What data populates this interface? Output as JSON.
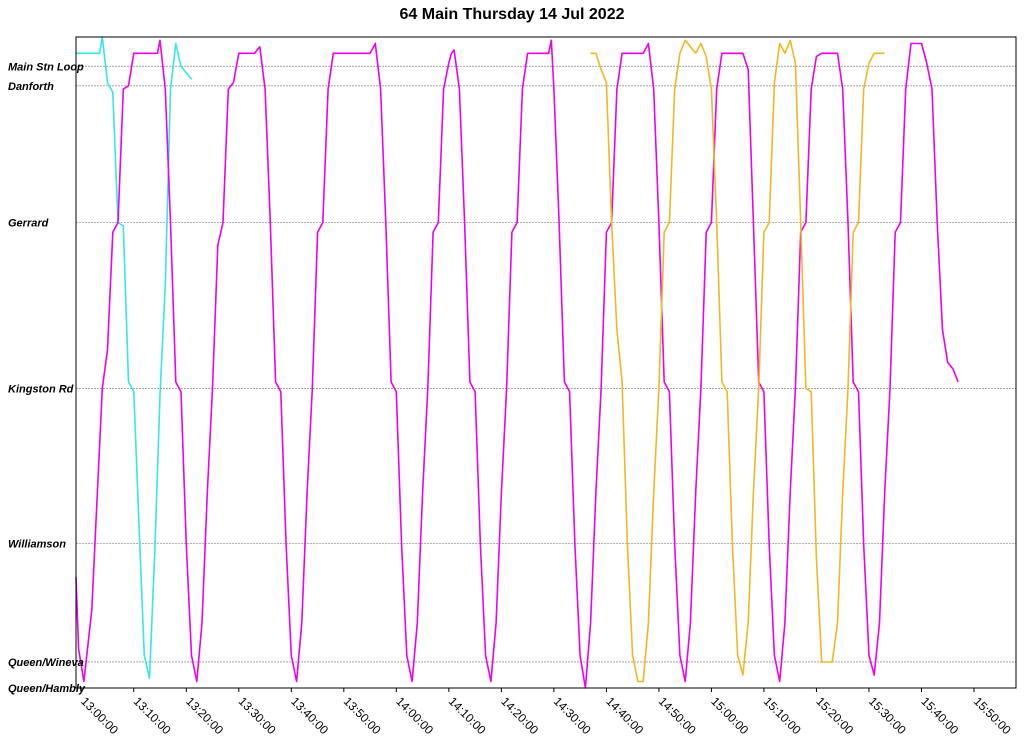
{
  "chart_data": {
    "type": "line",
    "title": "64 Main Thursday 14 Jul 2022",
    "x_range": [
      "12:59:00",
      "15:58:00"
    ],
    "grid": {
      "horizontal": true,
      "vertical": false
    },
    "stops": [
      {
        "name": "Main Stn Loop",
        "pos": 0.955
      },
      {
        "name": "Danforth",
        "pos": 0.925
      },
      {
        "name": "Gerrard",
        "pos": 0.715
      },
      {
        "name": "Kingston Rd",
        "pos": 0.46
      },
      {
        "name": "Williamson",
        "pos": 0.222
      },
      {
        "name": "Queen/Wineva",
        "pos": 0.04
      },
      {
        "name": "Queen/Hambly",
        "pos": 0.0
      }
    ],
    "x_ticks": [
      "13:00:00",
      "13:10:00",
      "13:20:00",
      "13:30:00",
      "13:40:00",
      "13:50:00",
      "14:00:00",
      "14:10:00",
      "14:20:00",
      "14:30:00",
      "14:40:00",
      "14:50:00",
      "15:00:00",
      "15:10:00",
      "15:20:00",
      "15:30:00",
      "15:40:00",
      "15:50:00"
    ],
    "series": [
      {
        "color": "#33e8e8",
        "points": [
          [
            "12:59:00",
            0.975
          ],
          [
            "13:03:30",
            0.975
          ],
          [
            "13:04:00",
            1.0
          ],
          [
            "13:05:00",
            0.93
          ],
          [
            "13:06:00",
            0.915
          ],
          [
            "13:07:00",
            0.715
          ],
          [
            "13:08:00",
            0.71
          ],
          [
            "13:09:00",
            0.47
          ],
          [
            "13:10:00",
            0.455
          ],
          [
            "13:11:00",
            0.25
          ],
          [
            "13:12:00",
            0.05
          ],
          [
            "13:13:00",
            0.015
          ],
          [
            "13:14:00",
            0.21
          ],
          [
            "13:15:00",
            0.45
          ],
          [
            "13:16:00",
            0.62
          ],
          [
            "13:17:00",
            0.92
          ],
          [
            "13:18:00",
            0.99
          ],
          [
            "13:19:00",
            0.955
          ],
          [
            "13:20:00",
            0.945
          ],
          [
            "13:21:00",
            0.935
          ]
        ]
      },
      {
        "color": "#ee00ee",
        "points": [
          [
            "12:59:00",
            0.17
          ],
          [
            "12:59:30",
            0.06
          ],
          [
            "13:00:30",
            0.01
          ],
          [
            "13:02:00",
            0.12
          ],
          [
            "13:04:00",
            0.46
          ],
          [
            "13:05:00",
            0.52
          ],
          [
            "13:06:00",
            0.7
          ],
          [
            "13:07:00",
            0.715
          ],
          [
            "13:08:00",
            0.92
          ],
          [
            "13:09:00",
            0.925
          ],
          [
            "13:10:00",
            0.975
          ],
          [
            "13:12:00",
            0.975
          ],
          [
            "13:14:30",
            0.975
          ],
          [
            "13:15:00",
            0.995
          ],
          [
            "13:16:00",
            0.92
          ],
          [
            "13:17:00",
            0.715
          ],
          [
            "13:18:00",
            0.47
          ],
          [
            "13:19:00",
            0.455
          ],
          [
            "13:20:00",
            0.22
          ],
          [
            "13:21:00",
            0.05
          ],
          [
            "13:22:00",
            0.01
          ],
          [
            "13:23:00",
            0.1
          ],
          [
            "13:24:00",
            0.3
          ],
          [
            "13:25:00",
            0.46
          ],
          [
            "13:26:00",
            0.68
          ],
          [
            "13:27:00",
            0.715
          ],
          [
            "13:28:00",
            0.92
          ],
          [
            "13:29:00",
            0.93
          ],
          [
            "13:30:00",
            0.975
          ],
          [
            "13:33:00",
            0.975
          ],
          [
            "13:34:00",
            0.985
          ],
          [
            "13:35:00",
            0.92
          ],
          [
            "13:36:00",
            0.715
          ],
          [
            "13:37:00",
            0.47
          ],
          [
            "13:38:00",
            0.455
          ],
          [
            "13:39:00",
            0.22
          ],
          [
            "13:40:00",
            0.05
          ],
          [
            "13:41:00",
            0.01
          ],
          [
            "13:42:00",
            0.1
          ],
          [
            "13:43:00",
            0.3
          ],
          [
            "13:44:00",
            0.46
          ],
          [
            "13:45:00",
            0.7
          ],
          [
            "13:46:00",
            0.715
          ],
          [
            "13:47:00",
            0.92
          ],
          [
            "13:48:00",
            0.975
          ],
          [
            "13:55:00",
            0.975
          ],
          [
            "13:56:00",
            0.99
          ],
          [
            "13:57:00",
            0.92
          ],
          [
            "13:58:00",
            0.715
          ],
          [
            "13:59:00",
            0.47
          ],
          [
            "14:00:00",
            0.455
          ],
          [
            "14:01:00",
            0.22
          ],
          [
            "14:02:00",
            0.05
          ],
          [
            "14:03:00",
            0.01
          ],
          [
            "14:04:00",
            0.1
          ],
          [
            "14:05:00",
            0.3
          ],
          [
            "14:06:00",
            0.46
          ],
          [
            "14:07:00",
            0.7
          ],
          [
            "14:08:00",
            0.715
          ],
          [
            "14:09:00",
            0.92
          ],
          [
            "14:10:00",
            0.96
          ],
          [
            "14:10:30",
            0.975
          ],
          [
            "14:11:00",
            0.98
          ],
          [
            "14:12:00",
            0.92
          ],
          [
            "14:13:00",
            0.715
          ],
          [
            "14:14:00",
            0.47
          ],
          [
            "14:15:00",
            0.455
          ],
          [
            "14:16:00",
            0.22
          ],
          [
            "14:17:00",
            0.05
          ],
          [
            "14:18:00",
            0.01
          ],
          [
            "14:19:00",
            0.1
          ],
          [
            "14:20:00",
            0.3
          ],
          [
            "14:21:00",
            0.46
          ],
          [
            "14:22:00",
            0.7
          ],
          [
            "14:23:00",
            0.715
          ],
          [
            "14:24:00",
            0.92
          ],
          [
            "14:25:00",
            0.975
          ],
          [
            "14:29:00",
            0.975
          ],
          [
            "14:29:30",
            0.995
          ],
          [
            "14:30:00",
            0.92
          ],
          [
            "14:31:00",
            0.715
          ],
          [
            "14:32:00",
            0.47
          ],
          [
            "14:33:00",
            0.455
          ],
          [
            "14:34:00",
            0.22
          ],
          [
            "14:35:00",
            0.05
          ],
          [
            "14:36:00",
            0.0
          ],
          [
            "14:37:00",
            0.1
          ],
          [
            "14:38:00",
            0.3
          ],
          [
            "14:39:00",
            0.46
          ],
          [
            "14:40:00",
            0.7
          ],
          [
            "14:41:00",
            0.715
          ],
          [
            "14:42:00",
            0.92
          ],
          [
            "14:43:00",
            0.975
          ],
          [
            "14:47:00",
            0.975
          ],
          [
            "14:48:00",
            0.99
          ],
          [
            "14:49:00",
            0.92
          ],
          [
            "14:50:00",
            0.715
          ],
          [
            "14:51:00",
            0.47
          ],
          [
            "14:52:00",
            0.455
          ],
          [
            "14:53:00",
            0.22
          ],
          [
            "14:54:00",
            0.05
          ],
          [
            "14:55:00",
            0.01
          ],
          [
            "14:56:00",
            0.1
          ],
          [
            "14:57:00",
            0.3
          ],
          [
            "14:58:00",
            0.46
          ],
          [
            "14:59:00",
            0.7
          ],
          [
            "15:00:00",
            0.715
          ],
          [
            "15:01:00",
            0.92
          ],
          [
            "15:02:00",
            0.975
          ],
          [
            "15:06:00",
            0.975
          ],
          [
            "15:07:00",
            0.95
          ],
          [
            "15:08:00",
            0.715
          ],
          [
            "15:09:00",
            0.47
          ],
          [
            "15:10:00",
            0.455
          ],
          [
            "15:11:00",
            0.22
          ],
          [
            "15:12:00",
            0.05
          ],
          [
            "15:13:00",
            0.01
          ],
          [
            "15:14:00",
            0.1
          ],
          [
            "15:15:00",
            0.3
          ],
          [
            "15:16:00",
            0.46
          ],
          [
            "15:17:00",
            0.7
          ],
          [
            "15:18:00",
            0.715
          ],
          [
            "15:19:00",
            0.92
          ],
          [
            "15:20:00",
            0.97
          ],
          [
            "15:21:00",
            0.975
          ],
          [
            "15:24:00",
            0.975
          ],
          [
            "15:25:00",
            0.92
          ],
          [
            "15:26:00",
            0.715
          ],
          [
            "15:27:00",
            0.47
          ],
          [
            "15:28:00",
            0.455
          ],
          [
            "15:29:00",
            0.22
          ],
          [
            "15:30:00",
            0.05
          ],
          [
            "15:31:00",
            0.02
          ],
          [
            "15:32:00",
            0.1
          ],
          [
            "15:33:00",
            0.3
          ],
          [
            "15:34:00",
            0.46
          ],
          [
            "15:35:00",
            0.7
          ],
          [
            "15:36:00",
            0.715
          ],
          [
            "15:37:00",
            0.92
          ],
          [
            "15:38:00",
            0.99
          ],
          [
            "15:40:00",
            0.99
          ],
          [
            "15:41:00",
            0.96
          ],
          [
            "15:42:00",
            0.92
          ],
          [
            "15:43:00",
            0.715
          ],
          [
            "15:44:00",
            0.55
          ],
          [
            "15:45:00",
            0.5
          ],
          [
            "15:46:00",
            0.49
          ],
          [
            "15:47:00",
            0.47
          ]
        ]
      },
      {
        "color": "#f2b823",
        "points": [
          [
            "14:37:00",
            0.975
          ],
          [
            "14:38:00",
            0.975
          ],
          [
            "14:39:00",
            0.95
          ],
          [
            "14:40:00",
            0.93
          ],
          [
            "14:41:00",
            0.715
          ],
          [
            "14:42:00",
            0.55
          ],
          [
            "14:43:00",
            0.47
          ],
          [
            "14:44:00",
            0.22
          ],
          [
            "14:45:00",
            0.05
          ],
          [
            "14:46:00",
            0.01
          ],
          [
            "14:47:00",
            0.01
          ],
          [
            "14:48:00",
            0.1
          ],
          [
            "14:49:00",
            0.3
          ],
          [
            "14:50:00",
            0.46
          ],
          [
            "14:51:00",
            0.7
          ],
          [
            "14:52:00",
            0.715
          ],
          [
            "14:53:00",
            0.92
          ],
          [
            "14:54:00",
            0.975
          ],
          [
            "14:55:00",
            0.995
          ],
          [
            "14:56:00",
            0.985
          ],
          [
            "14:57:00",
            0.975
          ],
          [
            "14:58:00",
            0.99
          ],
          [
            "14:59:00",
            0.97
          ],
          [
            "15:00:00",
            0.92
          ],
          [
            "15:01:00",
            0.715
          ],
          [
            "15:02:00",
            0.47
          ],
          [
            "15:03:00",
            0.455
          ],
          [
            "15:04:00",
            0.22
          ],
          [
            "15:05:00",
            0.05
          ],
          [
            "15:06:00",
            0.02
          ],
          [
            "15:07:00",
            0.1
          ],
          [
            "15:08:00",
            0.3
          ],
          [
            "15:09:00",
            0.46
          ],
          [
            "15:10:00",
            0.7
          ],
          [
            "15:11:00",
            0.715
          ],
          [
            "15:12:00",
            0.93
          ],
          [
            "15:13:00",
            0.99
          ],
          [
            "15:14:00",
            0.975
          ],
          [
            "15:15:00",
            0.995
          ],
          [
            "15:16:00",
            0.96
          ],
          [
            "15:17:00",
            0.715
          ],
          [
            "15:18:00",
            0.46
          ],
          [
            "15:19:00",
            0.455
          ],
          [
            "15:20:00",
            0.2
          ],
          [
            "15:21:00",
            0.04
          ],
          [
            "15:23:00",
            0.04
          ],
          [
            "15:24:00",
            0.1
          ],
          [
            "15:25:00",
            0.3
          ],
          [
            "15:26:00",
            0.46
          ],
          [
            "15:27:00",
            0.7
          ],
          [
            "15:28:00",
            0.715
          ],
          [
            "15:29:00",
            0.92
          ],
          [
            "15:30:00",
            0.96
          ],
          [
            "15:31:00",
            0.975
          ],
          [
            "15:32:00",
            0.975
          ],
          [
            "15:33:00",
            0.975
          ]
        ]
      }
    ]
  }
}
